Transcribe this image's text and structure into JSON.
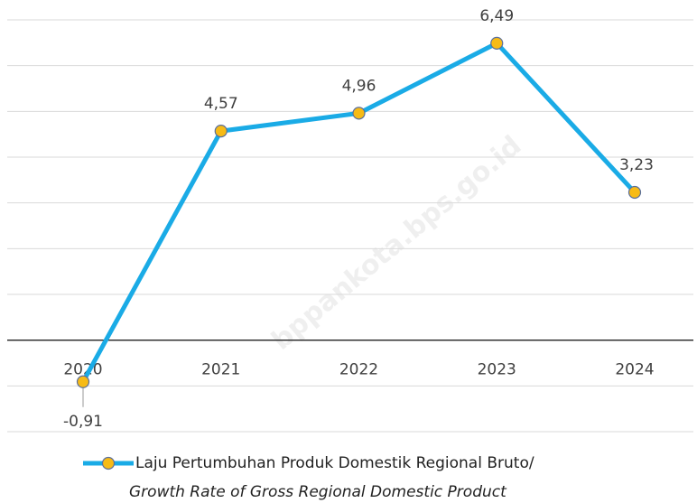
{
  "chart_data": {
    "type": "line",
    "categories": [
      "2020",
      "2021",
      "2022",
      "2023",
      "2024"
    ],
    "series": [
      {
        "name": "Laju Pertumbuhan Produk Domestik Regional Bruto/",
        "name_en": "Growth Rate of Gross Regional Domestic Product",
        "color": "#1aabe6",
        "marker_color": "#f7bb16",
        "values": [
          -0.91,
          4.57,
          4.96,
          6.49,
          3.23
        ],
        "value_labels": [
          "-0,91",
          "4,57",
          "4,96",
          "6,49",
          "3,23"
        ]
      }
    ],
    "ylim": [
      -2,
      7
    ],
    "yticks": [
      -2,
      -1,
      0,
      1,
      2,
      3,
      4,
      5,
      6,
      7
    ],
    "grid": true,
    "watermark": "bppankota.bps.go.id"
  }
}
